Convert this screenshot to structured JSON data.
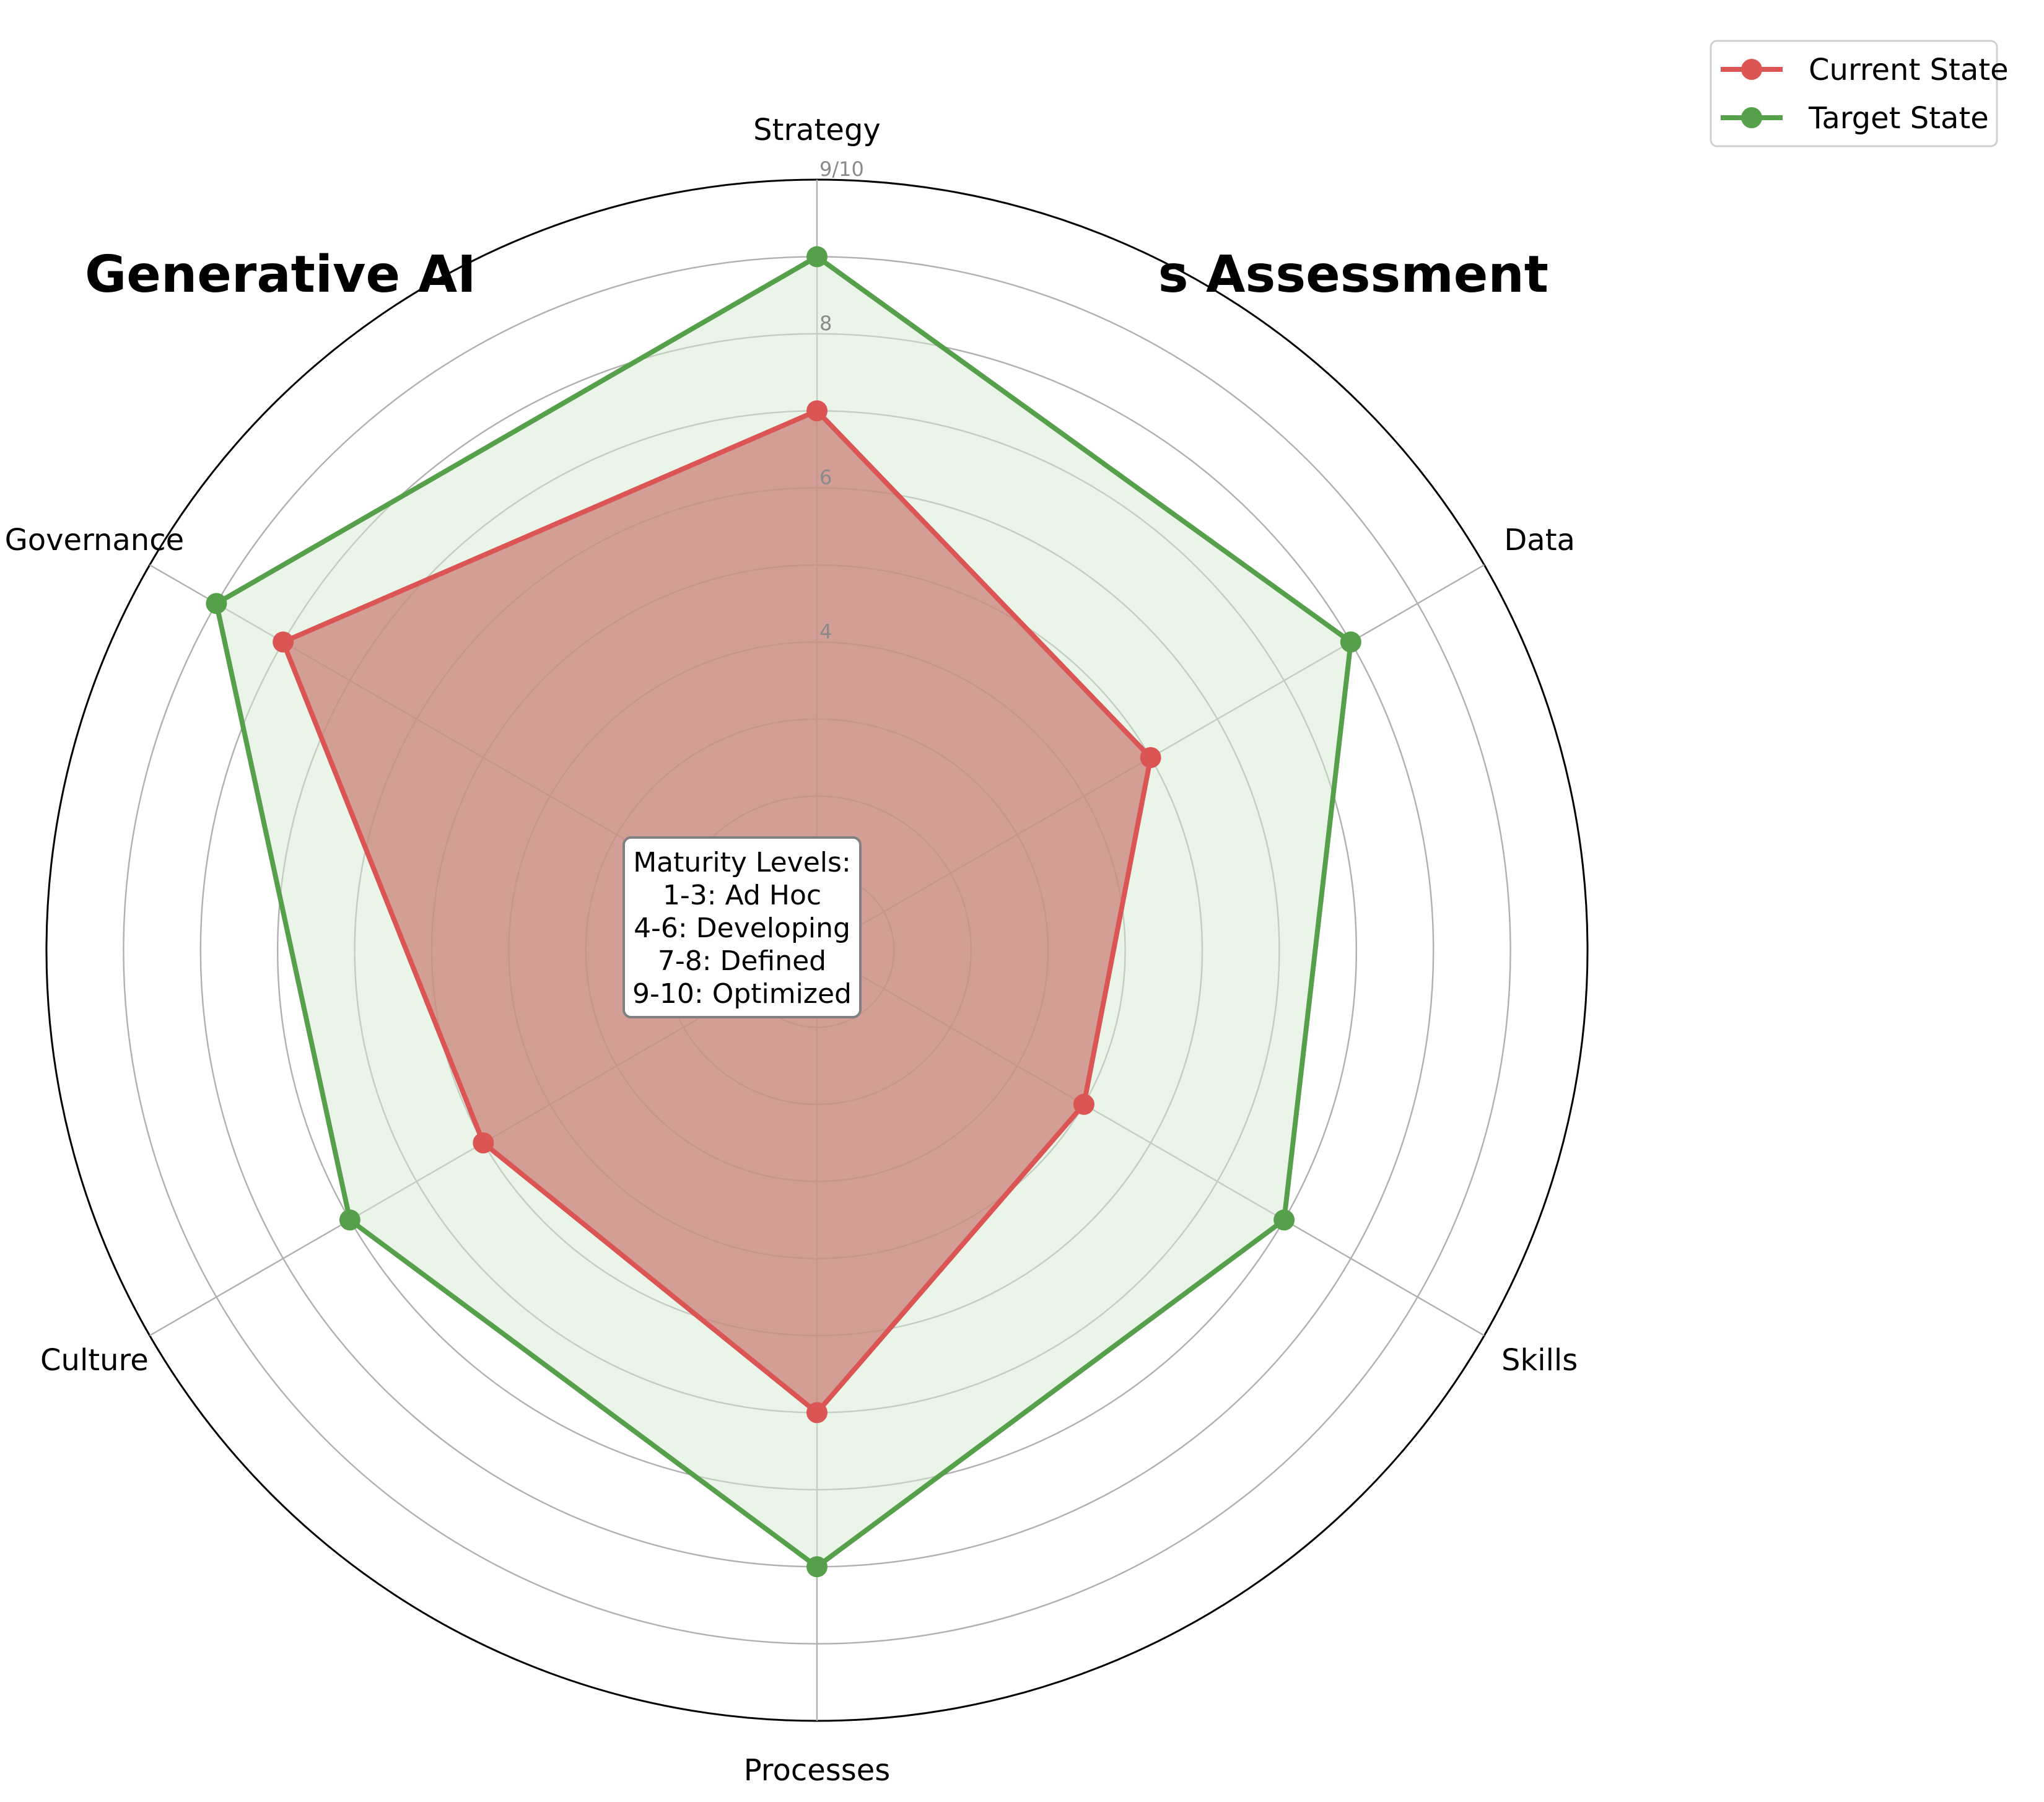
{
  "chart_data": {
    "type": "radar",
    "title_parts": [
      "Generative AI",
      "s Assessment"
    ],
    "axes": [
      "Strategy",
      "Data",
      "Skills",
      "Processes",
      "Culture",
      "Governance"
    ],
    "rlim": [
      0,
      10
    ],
    "tick_values": [
      4,
      6,
      8,
      10
    ],
    "tick_labels": [
      "4",
      "6",
      "8",
      "9/10"
    ],
    "grid": true,
    "legend_position": "top-right",
    "series": [
      {
        "name": "Current State",
        "color": "#dc5555",
        "fill": "#c9827a",
        "values": [
          7,
          5,
          4,
          6,
          5,
          8
        ]
      },
      {
        "name": "Target State",
        "color": "#57a04b",
        "fill": "#d8e9d4",
        "values": [
          9,
          8,
          7,
          8,
          7,
          9
        ]
      }
    ],
    "annotation": [
      "Maturity Levels:",
      "1-3: Ad Hoc",
      "4-6: Developing",
      "7-8: Defined",
      "9-10: Optimized"
    ]
  }
}
